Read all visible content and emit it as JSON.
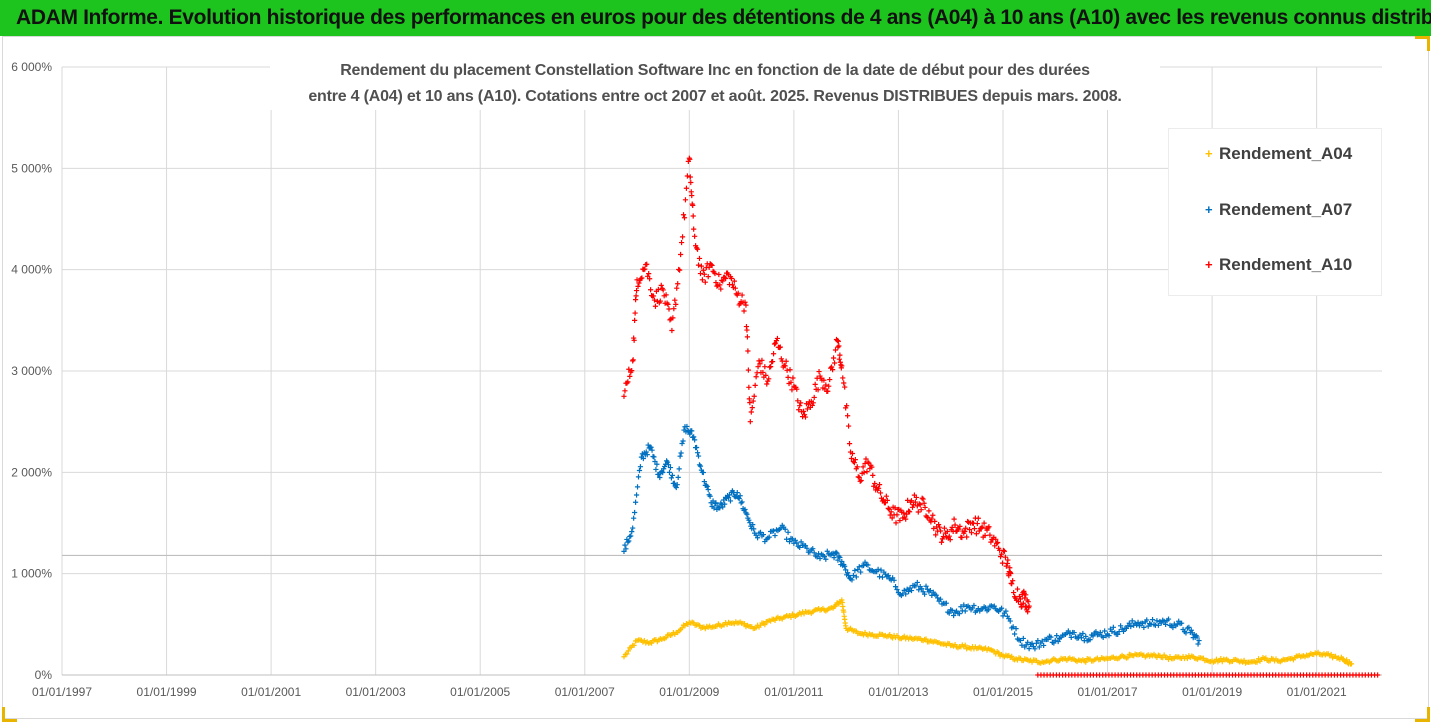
{
  "header": {
    "banner": "ADAM Informe. Evolution historique des performances en euros pour des détentions de 4 ans (A04) à 10 ans (A10) avec les revenus connus distribués"
  },
  "colors": {
    "banner_bg": "#1ec41e",
    "A04": "#ffc000",
    "A07": "#0070c0",
    "A10": "#ff0000"
  },
  "chart_data": {
    "type": "scatter",
    "title_line1": "Rendement du placement Constellation Software Inc en fonction de la date de début pour des durées",
    "title_line2": "entre 4 (A04) et 10 ans (A10). Cotations entre oct 2007 et août. 2025. Revenus DISTRIBUES depuis mars. 2008.",
    "xlabel": "",
    "ylabel": "",
    "x_range": [
      "1997-01-01",
      "2022-04-01"
    ],
    "x_ticks": [
      "01/01/1997",
      "01/01/1999",
      "01/01/2001",
      "01/01/2003",
      "01/01/2005",
      "01/01/2007",
      "01/01/2009",
      "01/01/2011",
      "01/01/2013",
      "01/01/2015",
      "01/01/2017",
      "01/01/2019",
      "01/01/2021"
    ],
    "y_range": [
      0,
      60
    ],
    "y_ticks": [
      "0%",
      "1 000%",
      "2 000%",
      "3 000%",
      "4 000%",
      "5 000%",
      "6 000%"
    ],
    "y_unit": "x100 %",
    "reference_line_y": 11.8,
    "grid": true,
    "legend_position": "right",
    "series": [
      {
        "name": "Rendement_A04",
        "color": "#ffc000",
        "x": [
          "2007-10",
          "2008-01",
          "2008-04",
          "2008-07",
          "2008-10",
          "2009-01",
          "2009-04",
          "2009-07",
          "2009-10",
          "2010-01",
          "2010-04",
          "2010-07",
          "2010-10",
          "2011-01",
          "2011-04",
          "2011-07",
          "2011-10",
          "2011-12",
          "2012-01",
          "2012-04",
          "2012-07",
          "2012-10",
          "2013-01",
          "2013-04",
          "2013-07",
          "2013-10",
          "2014-01",
          "2014-04",
          "2014-07",
          "2014-10",
          "2015-01",
          "2015-04",
          "2015-07",
          "2015-10",
          "2016-01",
          "2016-04",
          "2016-07",
          "2016-10",
          "2017-01",
          "2017-04",
          "2017-07",
          "2017-10",
          "2018-01",
          "2018-04",
          "2018-07",
          "2018-10",
          "2019-01",
          "2019-04",
          "2019-07",
          "2019-10",
          "2020-01",
          "2020-04",
          "2020-07",
          "2020-10",
          "2021-01",
          "2021-04",
          "2021-07",
          "2021-09"
        ],
        "y": [
          1.8,
          3.4,
          3.2,
          3.6,
          4.2,
          5.2,
          4.7,
          4.8,
          5.2,
          5.1,
          4.6,
          5.3,
          5.6,
          5.9,
          6.2,
          6.4,
          6.6,
          7.4,
          4.6,
          4.1,
          4.0,
          3.9,
          3.7,
          3.6,
          3.5,
          3.2,
          2.9,
          2.8,
          2.6,
          2.5,
          1.9,
          1.6,
          1.4,
          1.3,
          1.5,
          1.6,
          1.4,
          1.5,
          1.6,
          1.8,
          1.9,
          1.9,
          1.9,
          1.6,
          1.8,
          1.7,
          1.4,
          1.5,
          1.4,
          1.3,
          1.6,
          1.4,
          1.6,
          1.9,
          2.1,
          1.9,
          1.6,
          1.1
        ]
      },
      {
        "name": "Rendement_A07",
        "color": "#0070c0",
        "x": [
          "2007-10",
          "2007-12",
          "2008-02",
          "2008-04",
          "2008-06",
          "2008-08",
          "2008-10",
          "2008-12",
          "2009-02",
          "2009-04",
          "2009-06",
          "2009-08",
          "2009-10",
          "2009-12",
          "2010-02",
          "2010-04",
          "2010-07",
          "2010-10",
          "2011-01",
          "2011-04",
          "2011-07",
          "2011-10",
          "2011-12",
          "2012-02",
          "2012-05",
          "2012-08",
          "2012-11",
          "2013-02",
          "2013-05",
          "2013-08",
          "2013-11",
          "2014-02",
          "2014-05",
          "2014-08",
          "2014-11",
          "2015-02",
          "2015-05",
          "2015-08",
          "2015-11",
          "2016-02",
          "2016-05",
          "2016-08",
          "2016-11",
          "2017-02",
          "2017-05",
          "2017-08",
          "2017-11",
          "2018-02",
          "2018-05",
          "2018-08",
          "2018-10"
        ],
        "y": [
          12.2,
          14.5,
          21.5,
          22.5,
          19.8,
          21.0,
          18.5,
          24.5,
          23.5,
          20.0,
          17.0,
          16.5,
          17.5,
          18.0,
          16.0,
          14.0,
          13.5,
          14.5,
          13.0,
          12.5,
          11.5,
          12.0,
          11.2,
          9.5,
          10.8,
          10.2,
          9.5,
          8.0,
          8.8,
          8.2,
          7.0,
          6.2,
          6.8,
          6.5,
          6.8,
          5.8,
          3.4,
          2.8,
          3.5,
          3.6,
          4.2,
          3.8,
          4.0,
          4.3,
          4.6,
          5.2,
          5.0,
          5.3,
          5.0,
          4.2,
          3.4
        ]
      },
      {
        "name": "Rendement_A10",
        "color": "#ff0000",
        "x": [
          "2007-10",
          "2007-12",
          "2008-01",
          "2008-03",
          "2008-05",
          "2008-07",
          "2008-09",
          "2008-11",
          "2009-01",
          "2009-02",
          "2009-04",
          "2009-06",
          "2009-08",
          "2009-10",
          "2009-12",
          "2010-02",
          "2010-03",
          "2010-05",
          "2010-07",
          "2010-09",
          "2010-11",
          "2011-01",
          "2011-03",
          "2011-05",
          "2011-07",
          "2011-09",
          "2011-11",
          "2011-12",
          "2012-02",
          "2012-04",
          "2012-06",
          "2012-08",
          "2012-10",
          "2012-12",
          "2013-02",
          "2013-04",
          "2013-06",
          "2013-08",
          "2013-10",
          "2013-12",
          "2014-02",
          "2014-04",
          "2014-06",
          "2014-08",
          "2014-10",
          "2014-12",
          "2015-02",
          "2015-03",
          "2015-05",
          "2015-06",
          "2015-07"
        ],
        "y": [
          27.5,
          31.0,
          39.0,
          40.5,
          37.0,
          38.0,
          34.0,
          41.5,
          51.0,
          44.0,
          39.0,
          40.5,
          38.5,
          39.5,
          37.5,
          36.5,
          25.0,
          31.0,
          29.0,
          33.0,
          30.5,
          28.5,
          25.5,
          27.0,
          29.5,
          28.5,
          33.0,
          30.5,
          22.0,
          19.5,
          21.0,
          18.5,
          17.0,
          15.8,
          15.5,
          17.2,
          16.8,
          16.2,
          14.2,
          13.6,
          14.8,
          14.0,
          15.0,
          14.5,
          13.8,
          12.5,
          11.0,
          9.0,
          7.5,
          7.6,
          6.8
        ]
      }
    ],
    "flat_zero_series": {
      "color": "#ff0000",
      "from": "2015-09",
      "to": "2022-03",
      "y": 0
    }
  },
  "legend": [
    {
      "label": "Rendement_A04",
      "color": "#ffc000"
    },
    {
      "label": "Rendement_A07",
      "color": "#0070c0"
    },
    {
      "label": "Rendement_A10",
      "color": "#ff0000"
    }
  ]
}
